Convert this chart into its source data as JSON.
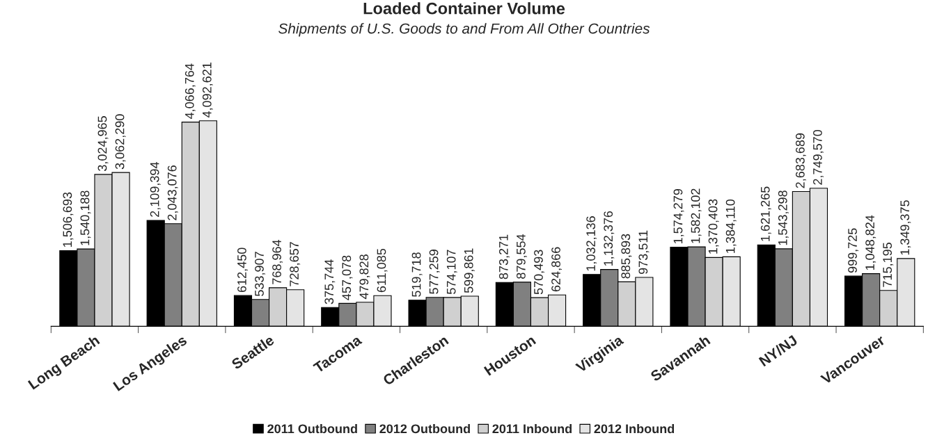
{
  "chart_data": {
    "type": "bar",
    "title": "Loaded Container Volume",
    "subtitle": "Shipments of U.S. Goods to and From All Other Countries",
    "categories": [
      "Long Beach",
      "Los Angeles",
      "Seattle",
      "Tacoma",
      "Charleston",
      "Houston",
      "Virginia",
      "Savannah",
      "NY/NJ",
      "Vancouver"
    ],
    "series": [
      {
        "name": "2011 Outbound",
        "color": "#000000",
        "values": [
          1506693,
          2109394,
          612450,
          375744,
          519718,
          873271,
          1032136,
          1574279,
          1621265,
          999725
        ],
        "value_labels": [
          "1,506,693",
          "2,109,394",
          "612,450",
          "375,744",
          "519,718",
          "873,271",
          "1,032,136",
          "1,574,279",
          "1,621,265",
          "999,725"
        ]
      },
      {
        "name": "2012 Outbound",
        "color": "#808080",
        "values": [
          1540188,
          2043076,
          533907,
          457078,
          577259,
          879554,
          1132376,
          1582102,
          1543298,
          1048824
        ],
        "value_labels": [
          "1,540,188",
          "2,043,076",
          "533,907",
          "457,078",
          "577,259",
          "879,554",
          "1,132,376",
          "1,582,102",
          "1,543,298",
          "1,048,824"
        ]
      },
      {
        "name": "2011 Inbound",
        "color": "#d0d0d0",
        "values": [
          3024965,
          4066764,
          768964,
          479828,
          574107,
          570493,
          885893,
          1370403,
          2683689,
          715195
        ],
        "value_labels": [
          "3,024,965",
          "4,066,764",
          "768,964",
          "479,828",
          "574,107",
          "570,493",
          "885,893",
          "1,370,403",
          "2,683,689",
          "715,195"
        ]
      },
      {
        "name": "2012 Inbound",
        "color": "#e4e4e4",
        "values": [
          3062290,
          4092621,
          728657,
          611085,
          599861,
          624866,
          973511,
          1384110,
          2749570,
          1349375
        ],
        "value_labels": [
          "3,062,290",
          "4,092,621",
          "728,657",
          "611,085",
          "599,861",
          "624,866",
          "973,511",
          "1,384,110",
          "2,749,570",
          "1,349,375"
        ]
      }
    ],
    "legend": "bottom",
    "tick_labels": "x"
  }
}
